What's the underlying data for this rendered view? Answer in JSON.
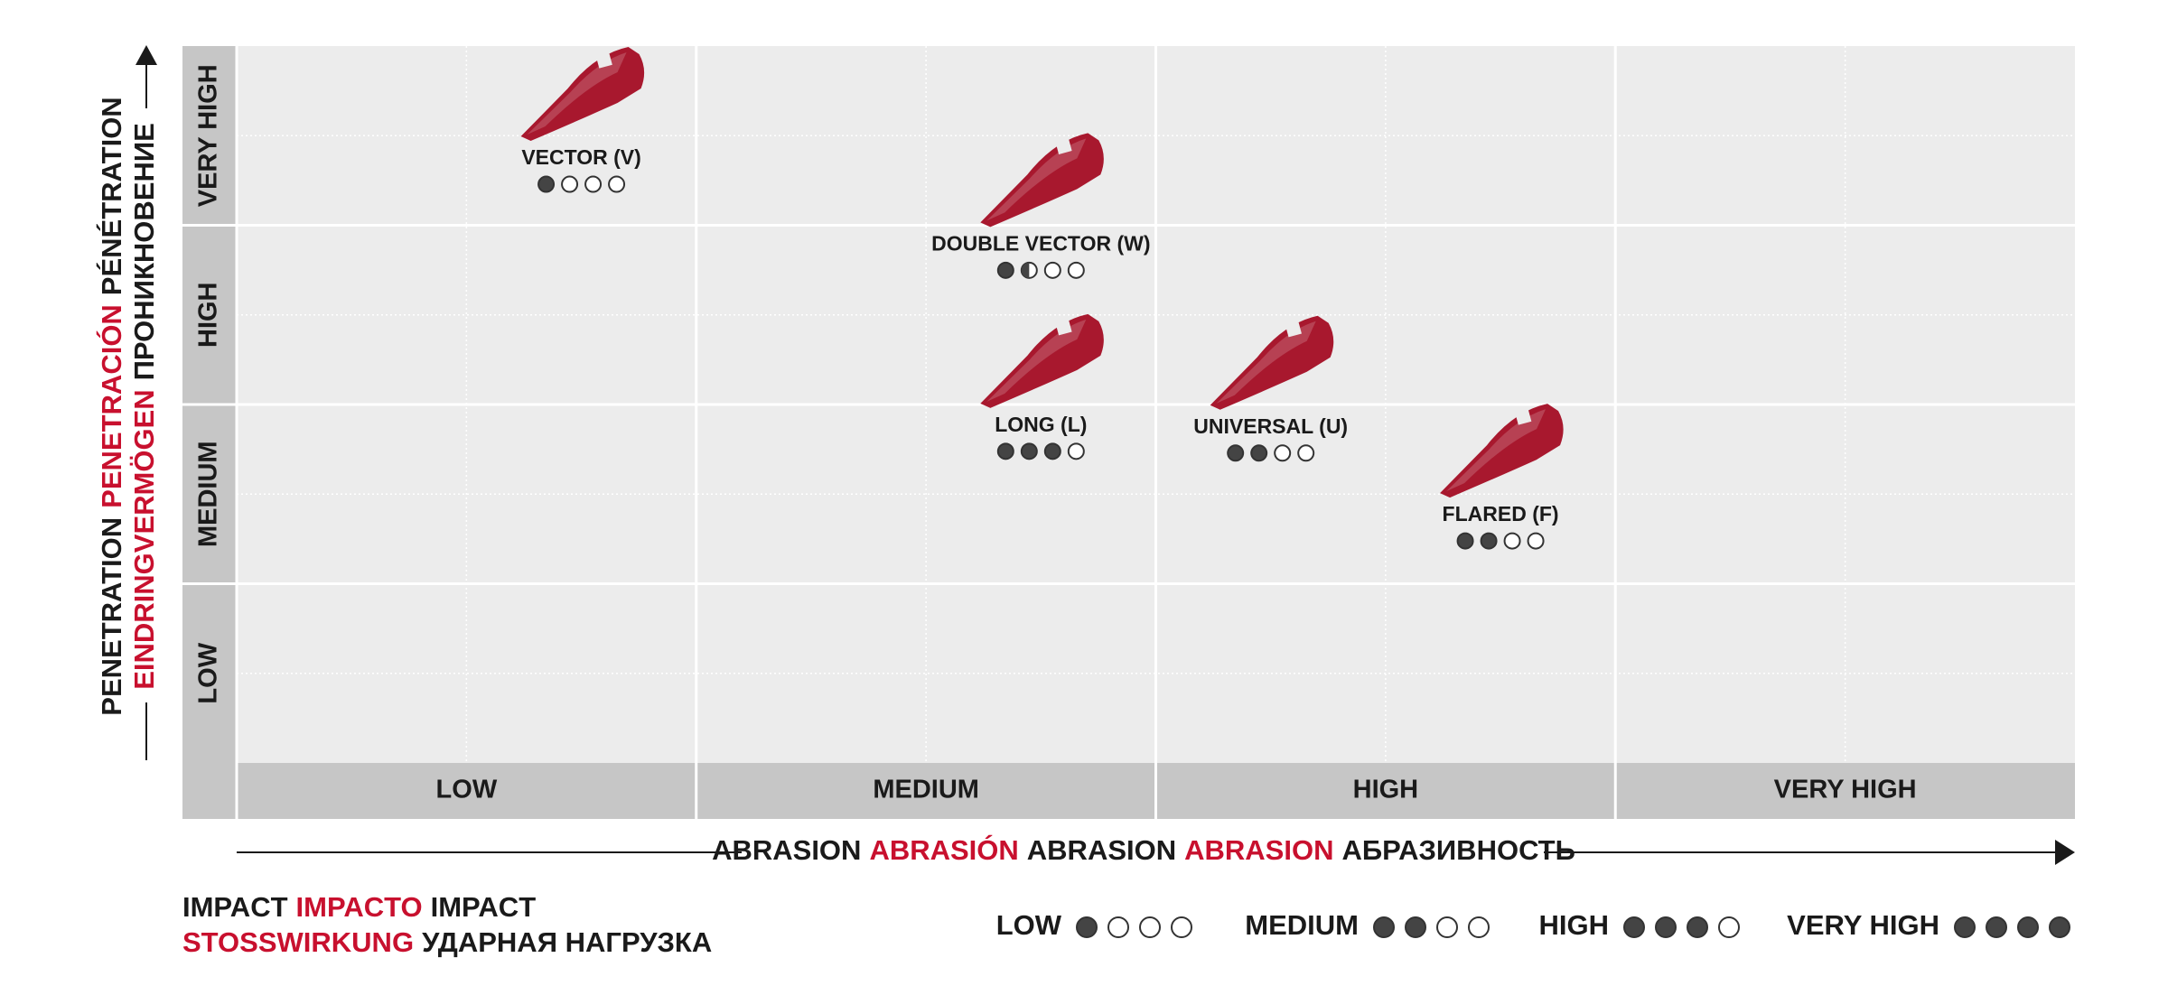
{
  "chart_data": {
    "type": "scatter",
    "y_axis_title": {
      "line1": [
        "PENETRATION",
        "PENETRACIÓN",
        "PÉNÉTRATION"
      ],
      "line2": [
        "EINDRINGVERMÖGEN",
        "ПРОНИКНОВЕНИЕ"
      ]
    },
    "x_axis_title": [
      "ABRASION",
      "ABRASIÓN",
      "ABRASION",
      "ABRASION",
      "АБРАЗИВНОСТЬ"
    ],
    "impact_title": {
      "line1": [
        "IMPACT",
        "IMPACTO",
        "IMPACT"
      ],
      "line2": [
        "STOSSWIRKUNG",
        "УДАРНАЯ НАГРУЗКА"
      ]
    },
    "x_categories": [
      "LOW",
      "MEDIUM",
      "HIGH",
      "VERY HIGH"
    ],
    "y_categories": [
      "LOW",
      "MEDIUM",
      "HIGH",
      "VERY HIGH"
    ],
    "xlim": [
      0,
      4
    ],
    "ylim": [
      0,
      4
    ],
    "color": "#a8182e",
    "points": [
      {
        "name": "VECTOR (V)",
        "x": 0.75,
        "y": 3.37,
        "impact": 1
      },
      {
        "name": "DOUBLE VECTOR (W)",
        "x": 1.75,
        "y": 2.89,
        "impact": 1.5
      },
      {
        "name": "LONG (L)",
        "x": 1.75,
        "y": 1.88,
        "impact": 3
      },
      {
        "name": "UNIVERSAL (U)",
        "x": 2.25,
        "y": 1.87,
        "impact": 2
      },
      {
        "name": "FLARED (F)",
        "x": 2.75,
        "y": 1.38,
        "impact": 2
      }
    ],
    "impact_legend": [
      {
        "label": "LOW",
        "value": 1
      },
      {
        "label": "MEDIUM",
        "value": 2
      },
      {
        "label": "HIGH",
        "value": 3
      },
      {
        "label": "VERY HIGH",
        "value": 4
      }
    ]
  }
}
